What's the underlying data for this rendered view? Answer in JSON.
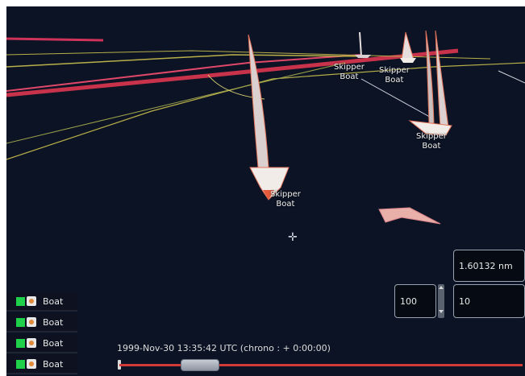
{
  "scene": {
    "boats": [
      {
        "label_line1": "Skipper",
        "label_line2": "Boat"
      },
      {
        "label_line1": "Skipper",
        "label_line2": "Boat"
      },
      {
        "label_line1": "Skipper",
        "label_line2": "Boat"
      },
      {
        "label_line1": "Skipper",
        "label_line2": "Boat"
      }
    ]
  },
  "boat_list": {
    "items": [
      {
        "name": "Boat",
        "color": "#1fd04a"
      },
      {
        "name": "Boat",
        "color": "#1fd04a"
      },
      {
        "name": "Boat",
        "color": "#1fd04a"
      },
      {
        "name": "Boat",
        "color": "#1fd04a"
      }
    ]
  },
  "readouts": {
    "distance": "1.60132 nm",
    "left_value": "100",
    "right_value": "10"
  },
  "timeline": {
    "timestamp": "1999-Nov-30 13:35:42 UTC (chrono : + 0:00:00)",
    "position": 0.2
  },
  "colors": {
    "background": "#0b1324",
    "track_yellow": "#b9b04a",
    "track_red": "#c8324a",
    "timeline": "#d23a3a"
  }
}
